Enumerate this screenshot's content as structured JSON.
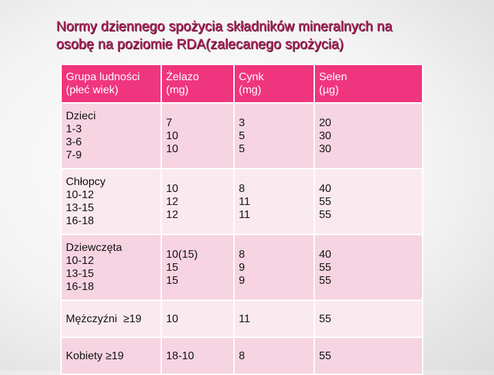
{
  "title": {
    "line1": "Normy dziennego spożycia składników mineralnych na",
    "line2": "osobę na poziomie RDA(zalecanego spożycia)"
  },
  "colors": {
    "title": "#b0245e",
    "header_bg": "#f0357f",
    "row_dark": "#f7d4e2",
    "row_light": "#fbe9f0"
  },
  "table": {
    "headers": [
      [
        "Grupa ludności",
        "(płeć wiek)"
      ],
      [
        "Żelazo",
        "(mg)"
      ],
      [
        "Cynk",
        "(mg)"
      ],
      [
        "Selen",
        "(µg)"
      ]
    ],
    "rows": [
      {
        "group": [
          "Dzieci",
          "1-3",
          "3-6",
          "7-9"
        ],
        "iron": [
          "7",
          "10",
          "10"
        ],
        "zinc": [
          "3",
          "5",
          "5"
        ],
        "selenium": [
          "20",
          "30",
          "30"
        ]
      },
      {
        "group": [
          "Chłopcy",
          "10-12",
          "13-15",
          "16-18"
        ],
        "iron": [
          "10",
          "12",
          "12"
        ],
        "zinc": [
          "8",
          "11",
          "11"
        ],
        "selenium": [
          "40",
          "55",
          "55"
        ]
      },
      {
        "group": [
          "Dziewczęta",
          "10-12",
          "13-15",
          "16-18"
        ],
        "iron": [
          "10(15)",
          "15",
          "15"
        ],
        "zinc": [
          "8",
          "9",
          "9"
        ],
        "selenium": [
          "40",
          "55",
          "55"
        ]
      },
      {
        "group": [
          "Mężczyźni  ≥19"
        ],
        "iron": [
          "10"
        ],
        "zinc": [
          "11"
        ],
        "selenium": [
          "55"
        ]
      },
      {
        "group": [
          "Kobiety ≥19"
        ],
        "iron": [
          "18-10"
        ],
        "zinc": [
          "8"
        ],
        "selenium": [
          "55"
        ]
      }
    ]
  }
}
